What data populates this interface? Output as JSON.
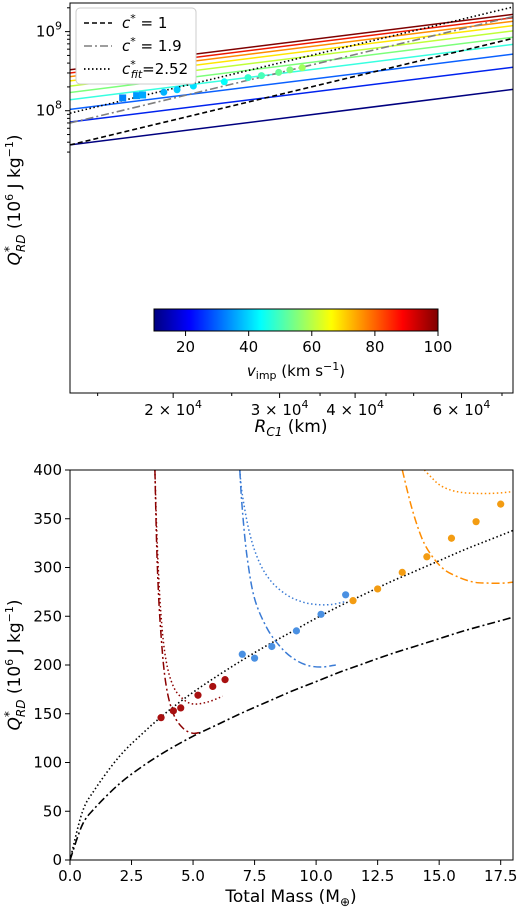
{
  "chart_data": [
    {
      "type": "line",
      "xscale": "log",
      "yscale": "log",
      "xlabel": "R_C1 (km)",
      "ylabel": "Q*_RD (10^6 J kg^-1)",
      "xlim": [
        13500,
        73000
      ],
      "ylim": [
        27000,
        2300000000
      ],
      "x_ticks": [
        {
          "value": 20000,
          "label": "2 × 10^4"
        },
        {
          "value": 30000,
          "label": "3 × 10^4"
        },
        {
          "value": 40000,
          "label": "4 × 10^4"
        },
        {
          "value": 60000,
          "label": "6 × 10^4"
        }
      ],
      "y_ticks": [
        {
          "value": 100000000,
          "label": "10^8"
        },
        {
          "value": 1000000000,
          "label": "10^9"
        }
      ],
      "legend": {
        "position": "top-left",
        "entries": [
          {
            "label": "c* = 1",
            "style": "dashed",
            "color": "#000000"
          },
          {
            "label": "c* = 1.9",
            "style": "dashdot",
            "color": "#7f7f7f"
          },
          {
            "label": "c*_fit=2.52",
            "style": "dotted",
            "color": "#000000"
          }
        ]
      },
      "reference_lines": [
        {
          "name": "c* = 1",
          "style": "dashed",
          "color": "#000000",
          "x": [
            13500,
            73000
          ],
          "y": [
            37000000,
            820000000
          ]
        },
        {
          "name": "c* = 1.9",
          "style": "dashdot",
          "color": "#7f7f7f",
          "x": [
            13500,
            73000
          ],
          "y": [
            70000000,
            1550000000
          ]
        },
        {
          "name": "c*_fit=2.52",
          "style": "dotted",
          "color": "#000000",
          "x": [
            13500,
            73000
          ],
          "y": [
            93000000,
            2050000000
          ]
        }
      ],
      "velocity_lines": [
        {
          "v_imp": 10,
          "color": "#00007f",
          "x": [
            13500,
            73000
          ],
          "y": [
            37000000,
            186000000
          ]
        },
        {
          "v_imp": 20,
          "color": "#0022ee",
          "x": [
            13500,
            73000
          ],
          "y": [
            72000000,
            355000000
          ]
        },
        {
          "v_imp": 30,
          "color": "#0a60ff",
          "x": [
            13500,
            73000
          ],
          "y": [
            104000000,
            520000000
          ]
        },
        {
          "v_imp": 40,
          "color": "#38ffe0",
          "x": [
            13500,
            73000
          ],
          "y": [
            138000000,
            690000000
          ]
        },
        {
          "v_imp": 50,
          "color": "#7cff7a",
          "x": [
            13500,
            73000
          ],
          "y": [
            170000000,
            850000000
          ]
        },
        {
          "v_imp": 60,
          "color": "#bfff38",
          "x": [
            13500,
            73000
          ],
          "y": [
            205000000,
            1020000000
          ]
        },
        {
          "v_imp": 70,
          "color": "#ffe600",
          "x": [
            13500,
            73000
          ],
          "y": [
            238000000,
            1190000000
          ]
        },
        {
          "v_imp": 80,
          "color": "#ff8c00",
          "x": [
            13500,
            73000
          ],
          "y": [
            270000000,
            1350000000
          ]
        },
        {
          "v_imp": 90,
          "color": "#ee1a00",
          "x": [
            13500,
            73000
          ],
          "y": [
            300000000,
            1500000000
          ]
        },
        {
          "v_imp": 100,
          "color": "#7f0000",
          "x": [
            13500,
            73000
          ],
          "y": [
            330000000,
            1650000000
          ]
        }
      ],
      "points": [
        {
          "x": 16500,
          "y": 145000000,
          "v_imp": 33,
          "marker": "square"
        },
        {
          "x": 17400,
          "y": 155000000,
          "v_imp": 35,
          "marker": "square"
        },
        {
          "x": 17800,
          "y": 158000000,
          "v_imp": 36,
          "marker": "square"
        },
        {
          "x": 19300,
          "y": 171000000,
          "v_imp": 37,
          "marker": "circle"
        },
        {
          "x": 20300,
          "y": 184000000,
          "v_imp": 39,
          "marker": "circle"
        },
        {
          "x": 21600,
          "y": 205000000,
          "v_imp": 41,
          "marker": "circle"
        },
        {
          "x": 24300,
          "y": 232000000,
          "v_imp": 44,
          "marker": "circle"
        },
        {
          "x": 26600,
          "y": 262000000,
          "v_imp": 48,
          "marker": "circle"
        },
        {
          "x": 28000,
          "y": 278000000,
          "v_imp": 50,
          "marker": "circle"
        },
        {
          "x": 29900,
          "y": 305000000,
          "v_imp": 53,
          "marker": "circle"
        },
        {
          "x": 31200,
          "y": 328000000,
          "v_imp": 55,
          "marker": "circle"
        },
        {
          "x": 32700,
          "y": 350000000,
          "v_imp": 58,
          "marker": "circle"
        }
      ],
      "colorbar": {
        "label": "v_imp (km s^-1)",
        "vmin": 10,
        "vmax": 100,
        "ticks": [
          20,
          40,
          60,
          80,
          100
        ],
        "colormap": [
          "#00007f",
          "#0000ff",
          "#007fff",
          "#00ffff",
          "#7fff7f",
          "#ffff00",
          "#ff7f00",
          "#ff0000",
          "#7f0000"
        ]
      }
    },
    {
      "type": "line",
      "xlabel": "Total Mass (M_⊕)",
      "ylabel": "Q*_RD (10^6 J kg^-1)",
      "xlim": [
        0,
        18
      ],
      "ylim": [
        0,
        400
      ],
      "x_ticks": [
        0.0,
        2.5,
        5.0,
        7.5,
        10.0,
        12.5,
        15.0,
        17.5
      ],
      "x_tick_labels": [
        "0.0",
        "2.5",
        "5.0",
        "7.5",
        "10.0",
        "12.5",
        "15.0",
        "17.5"
      ],
      "y_ticks": [
        0,
        50,
        100,
        150,
        200,
        250,
        300,
        350,
        400
      ],
      "y_tick_labels": [
        "0",
        "50",
        "100",
        "150",
        "200",
        "250",
        "300",
        "350",
        "400"
      ],
      "fit_lines": [
        {
          "name": "dotted fit",
          "style": "dotted",
          "color": "#000000",
          "x": [
            0.0,
            0.5,
            1.0,
            2.0,
            3.0,
            4.0,
            5.0,
            6.0,
            7.0,
            8.0,
            9.0,
            10.0,
            11.0,
            12.0,
            13.0,
            14.0,
            15.0,
            16.0,
            17.0,
            18.0
          ],
          "y": [
            0,
            49,
            72,
            106,
            131,
            153,
            172,
            189,
            205,
            220,
            234,
            248,
            261,
            273,
            285,
            296,
            307,
            318,
            328,
            338
          ]
        },
        {
          "name": "dashdot fit",
          "style": "dashdot",
          "color": "#000000",
          "x": [
            0.0,
            0.5,
            1.0,
            2.0,
            3.0,
            4.0,
            5.0,
            6.0,
            7.0,
            8.0,
            9.0,
            10.0,
            11.0,
            12.0,
            13.0,
            14.0,
            15.0,
            16.0,
            17.0,
            18.0
          ],
          "y": [
            0,
            36,
            53,
            78,
            97,
            113,
            127,
            139,
            151,
            162,
            173,
            183,
            193,
            202,
            211,
            219,
            227,
            235,
            242,
            249
          ]
        }
      ],
      "group_curves": [
        {
          "color": "#8b0000",
          "style": "dashdot",
          "x": [
            3.45,
            3.55,
            3.7,
            3.9,
            4.2,
            4.6,
            5.0,
            5.3
          ],
          "y": [
            400,
            300,
            230,
            180,
            150,
            135,
            130,
            131
          ]
        },
        {
          "color": "#8b0000",
          "style": "dotted",
          "x": [
            3.45,
            3.55,
            3.7,
            3.9,
            4.2,
            4.6,
            5.0,
            5.6,
            6.2
          ],
          "y": [
            400,
            320,
            250,
            205,
            178,
            165,
            160,
            162,
            168
          ]
        },
        {
          "color": "#3a7bd5",
          "style": "dashdot",
          "x": [
            6.9,
            7.0,
            7.2,
            7.5,
            8.0,
            8.5,
            9.0,
            9.6,
            10.2,
            10.8
          ],
          "y": [
            400,
            360,
            310,
            268,
            238,
            220,
            208,
            200,
            198,
            200
          ]
        },
        {
          "color": "#3a7bd5",
          "style": "dotted",
          "x": [
            6.9,
            7.0,
            7.3,
            7.7,
            8.2,
            8.8,
            9.4,
            10.0,
            10.6,
            11.2
          ],
          "y": [
            400,
            375,
            335,
            305,
            285,
            272,
            265,
            262,
            262,
            265
          ]
        },
        {
          "color": "#ff8c00",
          "style": "dashdot",
          "x": [
            13.5,
            13.9,
            14.3,
            14.7,
            15.2,
            15.8,
            16.4,
            17.0,
            17.6,
            18.0
          ],
          "y": [
            400,
            360,
            330,
            312,
            298,
            290,
            285,
            284,
            284,
            285
          ]
        },
        {
          "color": "#ff8c00",
          "style": "dotted",
          "x": [
            14.4,
            14.7,
            15.0,
            15.4,
            15.9,
            16.5,
            17.1,
            17.7,
            18.0
          ],
          "y": [
            400,
            392,
            385,
            380,
            377,
            376,
            376,
            377,
            378
          ]
        }
      ],
      "points": [
        {
          "x": 3.7,
          "y": 146,
          "color": "#a81010"
        },
        {
          "x": 4.2,
          "y": 153,
          "color": "#a81010"
        },
        {
          "x": 4.5,
          "y": 156,
          "color": "#a81010"
        },
        {
          "x": 5.2,
          "y": 169,
          "color": "#a81010"
        },
        {
          "x": 5.8,
          "y": 178,
          "color": "#a81010"
        },
        {
          "x": 6.3,
          "y": 185,
          "color": "#a81010"
        },
        {
          "x": 7.0,
          "y": 211,
          "color": "#4a90e2"
        },
        {
          "x": 7.5,
          "y": 207,
          "color": "#4a90e2"
        },
        {
          "x": 8.2,
          "y": 219,
          "color": "#4a90e2"
        },
        {
          "x": 9.2,
          "y": 235,
          "color": "#4a90e2"
        },
        {
          "x": 10.2,
          "y": 252,
          "color": "#4a90e2"
        },
        {
          "x": 11.2,
          "y": 272,
          "color": "#4a90e2"
        },
        {
          "x": 11.5,
          "y": 266,
          "color": "#f39c12"
        },
        {
          "x": 12.5,
          "y": 278,
          "color": "#f39c12"
        },
        {
          "x": 13.5,
          "y": 295,
          "color": "#f39c12"
        },
        {
          "x": 14.5,
          "y": 311,
          "color": "#f39c12"
        },
        {
          "x": 15.5,
          "y": 330,
          "color": "#f39c12"
        },
        {
          "x": 16.5,
          "y": 347,
          "color": "#f39c12"
        },
        {
          "x": 17.5,
          "y": 365,
          "color": "#f39c12"
        }
      ]
    }
  ]
}
